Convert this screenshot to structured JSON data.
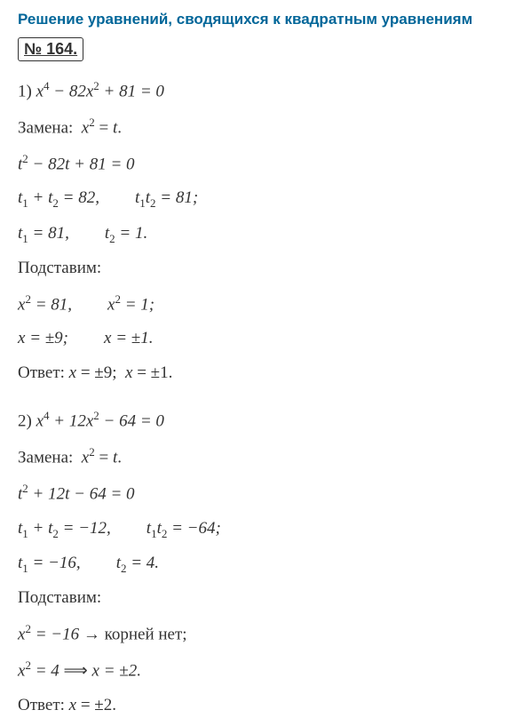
{
  "header": "Решение уравнений, сводящихся к квадратным уравнениям",
  "problem_number": "№ 164.",
  "part1": {
    "number": "1)",
    "equation": "x⁴ − 82x² + 81 = 0",
    "substitution_label": "Замена:",
    "substitution": "x² = t.",
    "sub_equation": "t² − 82t + 81 = 0",
    "vieta_sum_prefix": "t₁ + t₂ = 82,",
    "vieta_product": "t₁t₂ = 81;",
    "t1": "t₁ = 81,",
    "t2": "t₂ = 1.",
    "back_sub_label": "Подставим:",
    "x_eq1": "x² = 81,",
    "x_eq2": "x² = 1;",
    "x_sol1": "x = ±9;",
    "x_sol2": "x = ±1.",
    "answer_label": "Ответ:",
    "answer1": "x = ±9;",
    "answer2": "x = ±1."
  },
  "part2": {
    "number": "2)",
    "equation": "x⁴ + 12x² − 64 = 0",
    "substitution_label": "Замена:",
    "substitution": "x² = t.",
    "sub_equation": "t² + 12t − 64 = 0",
    "vieta_sum_prefix": "t₁ + t₂ = −12,",
    "vieta_product": "t₁t₂ = −64;",
    "t1": "t₁ = −16,",
    "t2": "t₂ = 4.",
    "back_sub_label": "Подставим:",
    "x_eq1": "x² = −16",
    "no_roots": "→ корней нет;",
    "x_eq2": "x² = 4",
    "implies": "⟹",
    "x_sol2": "x = ±2.",
    "answer_label": "Ответ:",
    "answer": "x = ±2."
  },
  "colors": {
    "header": "#006699",
    "text": "#333333",
    "background": "#ffffff"
  },
  "fonts": {
    "header_family": "Arial, sans-serif",
    "body_family": "Times New Roman, serif",
    "header_size": 17,
    "body_size": 19
  }
}
